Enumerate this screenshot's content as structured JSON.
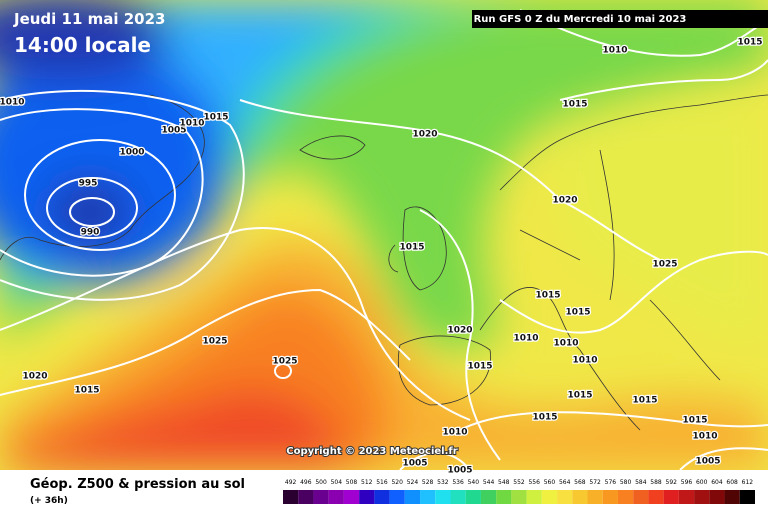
{
  "header": {
    "date": "Jeudi 11 mai 2023",
    "time": "14:00 locale",
    "run": "Run GFS 0 Z du Mercredi 10 mai 2023"
  },
  "isobar_labels": [
    1010,
    1005,
    1010,
    1015,
    1000,
    995,
    990,
    1020,
    1010,
    1015,
    1015,
    1020,
    1015,
    1025,
    1015,
    1015,
    1020,
    1010,
    1010,
    1025,
    1025,
    1020,
    1015,
    1015,
    1010,
    1015,
    1015,
    1015,
    1010,
    1010,
    1015,
    1005,
    1005,
    1005
  ],
  "copyright": "Copyright © 2023 Meteociel.fr",
  "footer": {
    "title": "Géop. Z500 & pression au sol",
    "lead": "(+ 36h)"
  },
  "scale": {
    "labels": [
      492,
      496,
      500,
      504,
      508,
      512,
      516,
      520,
      524,
      528,
      532,
      536,
      540,
      544,
      548,
      552,
      556,
      560,
      564,
      568,
      572,
      576,
      580,
      584,
      588,
      592,
      596,
      600,
      604,
      608,
      612
    ],
    "colors": [
      "#2a0030",
      "#4a0060",
      "#6a0090",
      "#8a00b0",
      "#a000d0",
      "#3000c0",
      "#1030e0",
      "#1060ff",
      "#1090ff",
      "#20c0ff",
      "#20e0f0",
      "#20e0c0",
      "#20d890",
      "#40d060",
      "#70d840",
      "#a0e040",
      "#d0f040",
      "#f0f040",
      "#f8e040",
      "#f8c830",
      "#f8b028",
      "#f89820",
      "#f88020",
      "#f06020",
      "#f04020",
      "#e02020",
      "#c01818",
      "#a01010",
      "#800808",
      "#500404",
      "#000000"
    ]
  }
}
